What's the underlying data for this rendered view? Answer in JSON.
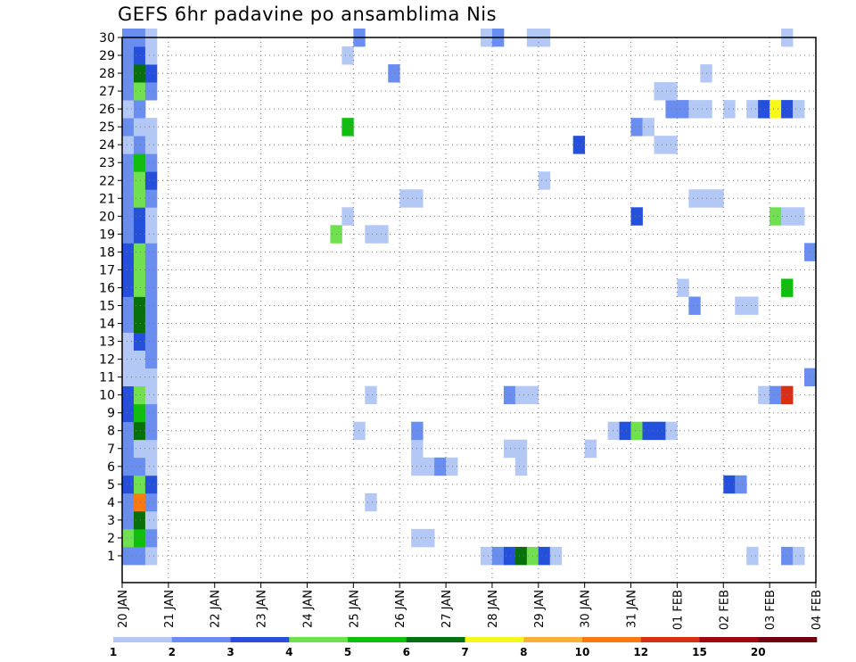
{
  "chart_data": {
    "type": "heatmap",
    "title": "GEFS 6hr padavine po ansamblima Nis",
    "xlabel": "",
    "ylabel": "",
    "members": [
      1,
      2,
      3,
      4,
      5,
      6,
      7,
      8,
      9,
      10,
      11,
      12,
      13,
      14,
      15,
      16,
      17,
      18,
      19,
      20,
      21,
      22,
      23,
      24,
      25,
      26,
      27,
      28,
      29,
      30
    ],
    "x_ticks": [
      "20 JAN",
      "21 JAN",
      "22 JAN",
      "23 JAN",
      "24 JAN",
      "25 JAN",
      "26 JAN",
      "27 JAN",
      "28 JAN",
      "29 JAN",
      "30 JAN",
      "31 JAN",
      "01 FEB",
      "02 FEB",
      "03 FEB",
      "04 FEB"
    ],
    "steps_per_day": 4,
    "total_steps": 60,
    "grid": true,
    "colorbar": {
      "colors": [
        "#b4c8f5",
        "#6a8ef0",
        "#2550dc",
        "#70e050",
        "#10be10",
        "#08700a",
        "#f8f818",
        "#f8b038",
        "#f87a10",
        "#d83018",
        "#a00810",
        "#700010"
      ],
      "labels": [
        "1",
        "2",
        "3",
        "4",
        "5",
        "6",
        "7",
        "8",
        "10",
        "12",
        "15",
        "20"
      ],
      "placement": "bottom"
    },
    "cells": [
      [
        1,
        0,
        1
      ],
      [
        1,
        1,
        1
      ],
      [
        1,
        2,
        0
      ],
      [
        1,
        31,
        0
      ],
      [
        1,
        32,
        1
      ],
      [
        1,
        33,
        2
      ],
      [
        1,
        34,
        5
      ],
      [
        1,
        35,
        3
      ],
      [
        1,
        36,
        2
      ],
      [
        1,
        37,
        0
      ],
      [
        1,
        54,
        0
      ],
      [
        1,
        57,
        1
      ],
      [
        1,
        58,
        0
      ],
      [
        2,
        0,
        3
      ],
      [
        2,
        1,
        4
      ],
      [
        2,
        2,
        1
      ],
      [
        2,
        25,
        0
      ],
      [
        2,
        26,
        0
      ],
      [
        3,
        0,
        1
      ],
      [
        3,
        1,
        5
      ],
      [
        3,
        2,
        0
      ],
      [
        4,
        0,
        1
      ],
      [
        4,
        1,
        8
      ],
      [
        4,
        2,
        1
      ],
      [
        4,
        21,
        0
      ],
      [
        5,
        0,
        2
      ],
      [
        5,
        1,
        3
      ],
      [
        5,
        2,
        2
      ],
      [
        5,
        52,
        2
      ],
      [
        5,
        53,
        1
      ],
      [
        6,
        0,
        1
      ],
      [
        6,
        1,
        1
      ],
      [
        6,
        2,
        0
      ],
      [
        6,
        25,
        0
      ],
      [
        6,
        26,
        0
      ],
      [
        6,
        27,
        1
      ],
      [
        6,
        28,
        0
      ],
      [
        6,
        34,
        0
      ],
      [
        7,
        0,
        1
      ],
      [
        7,
        1,
        0
      ],
      [
        7,
        2,
        0
      ],
      [
        7,
        25,
        0
      ],
      [
        7,
        33,
        0
      ],
      [
        7,
        34,
        0
      ],
      [
        7,
        40,
        0
      ],
      [
        8,
        0,
        1
      ],
      [
        8,
        1,
        5
      ],
      [
        8,
        2,
        1
      ],
      [
        8,
        20,
        0
      ],
      [
        8,
        25,
        1
      ],
      [
        8,
        42,
        0
      ],
      [
        8,
        43,
        2
      ],
      [
        8,
        44,
        3
      ],
      [
        8,
        45,
        2
      ],
      [
        8,
        46,
        2
      ],
      [
        8,
        47,
        0
      ],
      [
        9,
        0,
        2
      ],
      [
        9,
        1,
        4
      ],
      [
        9,
        2,
        1
      ],
      [
        10,
        0,
        2
      ],
      [
        10,
        1,
        3
      ],
      [
        10,
        2,
        0
      ],
      [
        10,
        21,
        0
      ],
      [
        10,
        33,
        1
      ],
      [
        10,
        34,
        0
      ],
      [
        10,
        35,
        0
      ],
      [
        10,
        55,
        0
      ],
      [
        10,
        56,
        1
      ],
      [
        10,
        57,
        9
      ],
      [
        11,
        0,
        0
      ],
      [
        11,
        1,
        0
      ],
      [
        11,
        2,
        0
      ],
      [
        11,
        59,
        1
      ],
      [
        12,
        0,
        0
      ],
      [
        12,
        1,
        0
      ],
      [
        12,
        2,
        1
      ],
      [
        13,
        0,
        0
      ],
      [
        13,
        1,
        2
      ],
      [
        13,
        2,
        1
      ],
      [
        14,
        0,
        1
      ],
      [
        14,
        1,
        5
      ],
      [
        14,
        2,
        1
      ],
      [
        15,
        0,
        1
      ],
      [
        15,
        1,
        5
      ],
      [
        15,
        2,
        1
      ],
      [
        15,
        49,
        1
      ],
      [
        15,
        53,
        0
      ],
      [
        15,
        54,
        0
      ],
      [
        16,
        0,
        2
      ],
      [
        16,
        1,
        3
      ],
      [
        16,
        2,
        1
      ],
      [
        16,
        48,
        0
      ],
      [
        16,
        57,
        4
      ],
      [
        17,
        0,
        2
      ],
      [
        17,
        1,
        3
      ],
      [
        17,
        2,
        1
      ],
      [
        18,
        0,
        2
      ],
      [
        18,
        1,
        3
      ],
      [
        18,
        2,
        1
      ],
      [
        18,
        59,
        1
      ],
      [
        19,
        0,
        1
      ],
      [
        19,
        1,
        2
      ],
      [
        19,
        2,
        0
      ],
      [
        19,
        18,
        3
      ],
      [
        19,
        21,
        0
      ],
      [
        19,
        22,
        0
      ],
      [
        20,
        0,
        1
      ],
      [
        20,
        1,
        2
      ],
      [
        20,
        2,
        0
      ],
      [
        20,
        19,
        0
      ],
      [
        20,
        44,
        2
      ],
      [
        20,
        56,
        3
      ],
      [
        20,
        57,
        0
      ],
      [
        20,
        58,
        0
      ],
      [
        21,
        0,
        1
      ],
      [
        21,
        1,
        3
      ],
      [
        21,
        2,
        1
      ],
      [
        21,
        24,
        0
      ],
      [
        21,
        25,
        0
      ],
      [
        21,
        49,
        0
      ],
      [
        21,
        50,
        0
      ],
      [
        21,
        51,
        0
      ],
      [
        22,
        0,
        1
      ],
      [
        22,
        1,
        3
      ],
      [
        22,
        2,
        2
      ],
      [
        22,
        36,
        0
      ],
      [
        23,
        0,
        1
      ],
      [
        23,
        1,
        4
      ],
      [
        23,
        2,
        1
      ],
      [
        24,
        0,
        0
      ],
      [
        24,
        1,
        1
      ],
      [
        24,
        2,
        0
      ],
      [
        24,
        39,
        2
      ],
      [
        24,
        46,
        0
      ],
      [
        24,
        47,
        0
      ],
      [
        25,
        0,
        1
      ],
      [
        25,
        1,
        0
      ],
      [
        25,
        2,
        0
      ],
      [
        25,
        19,
        4
      ],
      [
        25,
        44,
        1
      ],
      [
        25,
        45,
        0
      ],
      [
        26,
        0,
        0
      ],
      [
        26,
        1,
        1
      ],
      [
        26,
        47,
        1
      ],
      [
        26,
        48,
        1
      ],
      [
        26,
        49,
        0
      ],
      [
        26,
        50,
        0
      ],
      [
        26,
        52,
        0
      ],
      [
        26,
        54,
        0
      ],
      [
        26,
        55,
        2
      ],
      [
        26,
        56,
        6
      ],
      [
        26,
        57,
        2
      ],
      [
        26,
        58,
        0
      ],
      [
        27,
        0,
        1
      ],
      [
        27,
        1,
        3
      ],
      [
        27,
        2,
        1
      ],
      [
        27,
        46,
        0
      ],
      [
        27,
        47,
        0
      ],
      [
        28,
        0,
        1
      ],
      [
        28,
        1,
        5
      ],
      [
        28,
        2,
        2
      ],
      [
        28,
        23,
        1
      ],
      [
        28,
        50,
        0
      ],
      [
        29,
        0,
        1
      ],
      [
        29,
        1,
        2
      ],
      [
        29,
        2,
        0
      ],
      [
        29,
        19,
        0
      ],
      [
        30,
        0,
        1
      ],
      [
        30,
        1,
        1
      ],
      [
        30,
        2,
        0
      ],
      [
        30,
        20,
        1
      ],
      [
        30,
        31,
        0
      ],
      [
        30,
        32,
        1
      ],
      [
        30,
        35,
        0
      ],
      [
        30,
        36,
        0
      ],
      [
        30,
        57,
        0
      ]
    ]
  }
}
